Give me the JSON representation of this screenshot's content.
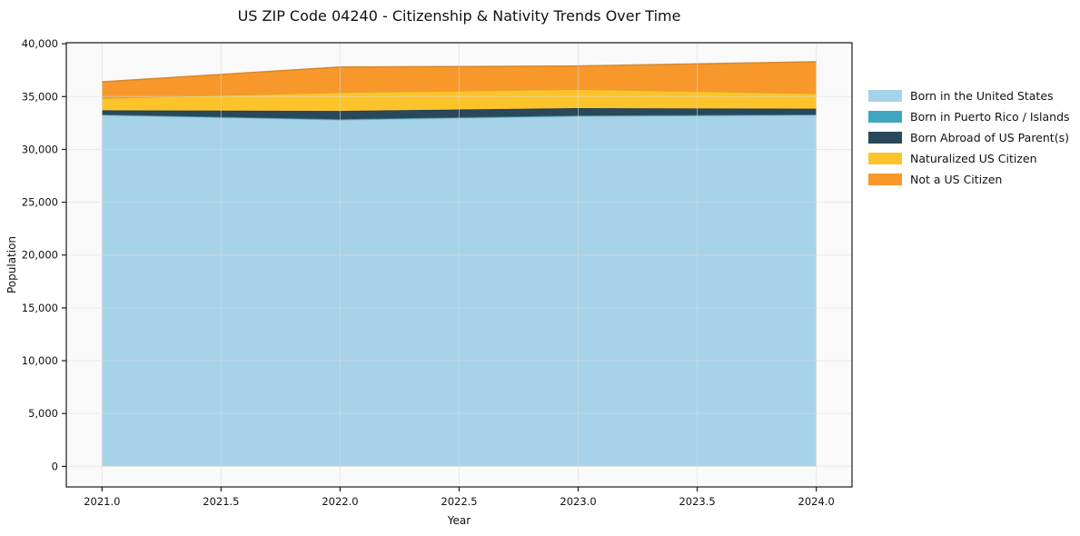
{
  "title": "US ZIP Code 04240 - Citizenship & Nativity Trends Over Time",
  "colors": {
    "figure_bg": "#FFFFFF",
    "plot_bg": "#FAFAFA",
    "grid": "#DCDCDC",
    "frame": "#1A1A1A",
    "tick_text": "#111111"
  },
  "chart_data": {
    "type": "area",
    "stacked": true,
    "title": "US ZIP Code 04240 - Citizenship & Nativity Trends Over Time",
    "xlabel": "Year",
    "ylabel": "Population",
    "x": [
      2021,
      2022,
      2023,
      2024
    ],
    "series": [
      {
        "name": "Born in the United States",
        "color": "#A6D3E8",
        "values": [
          33250,
          32800,
          33150,
          33250
        ]
      },
      {
        "name": "Born in Puerto Rico / Islands",
        "color": "#3FA7BF",
        "values": [
          50,
          60,
          60,
          50
        ]
      },
      {
        "name": "Born Abroad of US Parent(s)",
        "color": "#29485A",
        "values": [
          400,
          780,
          700,
          550
        ]
      },
      {
        "name": "Naturalized US Citizen",
        "color": "#FDC32B",
        "values": [
          1150,
          1760,
          1790,
          1450
        ]
      },
      {
        "name": "Not a US Citizen",
        "color": "#F8982A",
        "values": [
          1550,
          2400,
          2200,
          3000
        ]
      }
    ],
    "stacked_totals": [
      36400,
      37800,
      37900,
      38300
    ],
    "xlim": [
      2020.85,
      2024.15
    ],
    "ylim": [
      -1950,
      40100
    ],
    "x_ticks": [
      2021.0,
      2021.5,
      2022.0,
      2022.5,
      2023.0,
      2023.5,
      2024.0
    ],
    "x_tick_labels": [
      "2021.0",
      "2021.5",
      "2022.0",
      "2022.5",
      "2023.0",
      "2023.5",
      "2024.0"
    ],
    "y_ticks": [
      0,
      5000,
      10000,
      15000,
      20000,
      25000,
      30000,
      35000,
      40000
    ],
    "y_tick_labels": [
      "0",
      "5,000",
      "10,000",
      "15,000",
      "20,000",
      "25,000",
      "30,000",
      "35,000",
      "40,000"
    ],
    "grid": true,
    "grid_on_top": true,
    "legend_position": "right-outside"
  }
}
